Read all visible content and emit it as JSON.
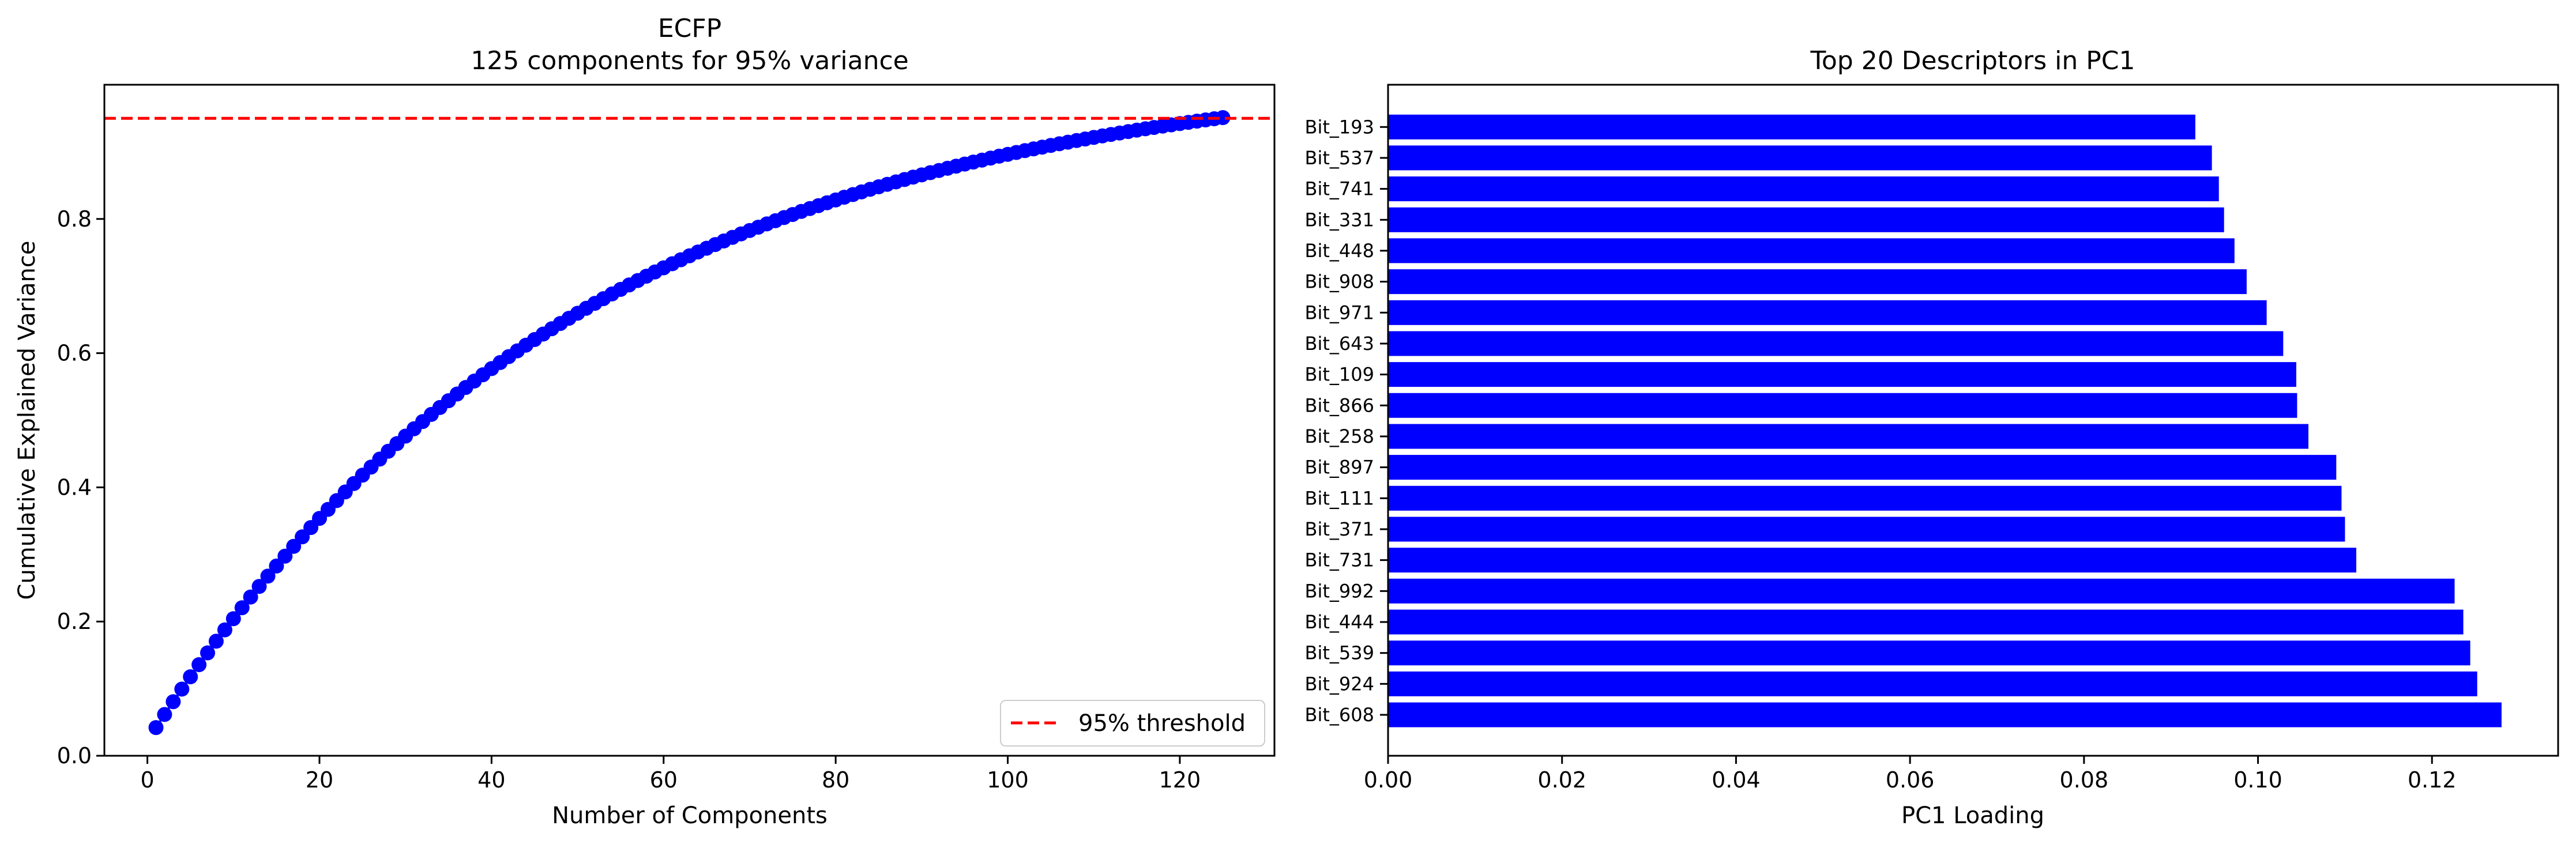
{
  "chart_data": [
    {
      "type": "line",
      "title": "ECFP",
      "subtitle": "125 components for 95% variance",
      "xlabel": "Number of Components",
      "ylabel": "Cumulative Explained Variance",
      "xlim": [
        -5,
        131
      ],
      "ylim": [
        0,
        1.0
      ],
      "xticks": [
        "0",
        "20",
        "40",
        "60",
        "80",
        "100",
        "120"
      ],
      "yticks": [
        "0.0",
        "0.2",
        "0.4",
        "0.6",
        "0.8"
      ],
      "series": [
        {
          "marker": "circle",
          "color": "#0000ff",
          "x_start": 1,
          "x_end": 125,
          "y_first": 0.042,
          "y_last": 0.951
        }
      ],
      "reference_line": {
        "y": 0.95,
        "color": "#ff0000",
        "style": "dashed",
        "label": "95% threshold"
      },
      "legend": {
        "position": "lower-right",
        "entries": [
          "95% threshold"
        ]
      },
      "grid": false
    },
    {
      "type": "bar",
      "orientation": "horizontal",
      "title": "Top 20 Descriptors in PC1",
      "xlabel": "PC1 Loading",
      "ylabel": "",
      "xlim": [
        0,
        0.1345
      ],
      "xticks": [
        "0.00",
        "0.02",
        "0.04",
        "0.06",
        "0.08",
        "0.10",
        "0.12"
      ],
      "color": "#0000ff",
      "categories": [
        "Bit_608",
        "Bit_924",
        "Bit_539",
        "Bit_444",
        "Bit_992",
        "Bit_731",
        "Bit_371",
        "Bit_111",
        "Bit_897",
        "Bit_258",
        "Bit_866",
        "Bit_109",
        "Bit_643",
        "Bit_971",
        "Bit_908",
        "Bit_448",
        "Bit_331",
        "Bit_741",
        "Bit_537",
        "Bit_193"
      ],
      "values": [
        0.128,
        0.1252,
        0.1244,
        0.1236,
        0.1226,
        0.1113,
        0.11,
        0.1096,
        0.109,
        0.1058,
        0.1045,
        0.1044,
        0.1029,
        0.101,
        0.0987,
        0.0973,
        0.0961,
        0.0955,
        0.0947,
        0.0928
      ],
      "grid": false
    }
  ]
}
